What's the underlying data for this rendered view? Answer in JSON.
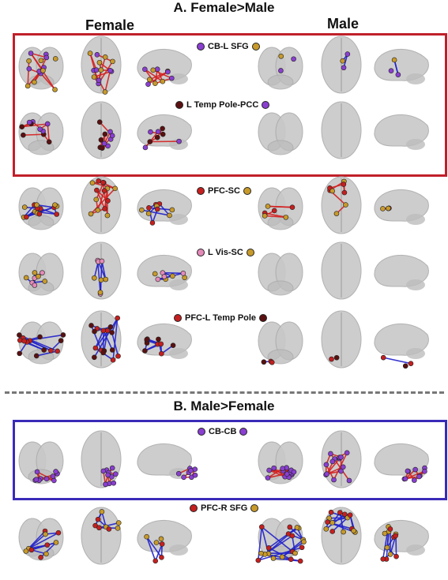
{
  "colors": {
    "female_gt_male_box": "#c0202a",
    "male_gt_female_box": "#3a2bb8",
    "divider": "#777777",
    "brain_fill": "#c8c8c8",
    "edge_red": "#d52020",
    "edge_blue": "#2020cc",
    "node_purple": "#8a3fd1",
    "node_gold": "#c89a2a",
    "node_darkred": "#5a1010",
    "node_red": "#c51f1f",
    "node_pink": "#e48ab8"
  },
  "section_a": {
    "title": "A. Female>Male",
    "col_female": "Female",
    "col_male": "Male"
  },
  "section_b": {
    "title": "B. Male>Female"
  },
  "rows": [
    {
      "label": "CB-L SFG",
      "dot_left": "#8a3fd1",
      "dot_right": "#c89a2a"
    },
    {
      "label": "L Temp Pole-PCC",
      "dot_left": "#5a1010",
      "dot_right": "#8a3fd1"
    },
    {
      "label": "PFC-SC",
      "dot_left": "#c51f1f",
      "dot_right": "#c89a2a"
    },
    {
      "label": "L Vis-SC",
      "dot_left": "#e48ab8",
      "dot_right": "#c89a2a"
    },
    {
      "label": "PFC-L Temp Pole",
      "dot_left": "#c51f1f",
      "dot_right": "#5a1010"
    },
    {
      "label": "CB-CB",
      "dot_left": "#8a3fd1",
      "dot_right": "#8a3fd1"
    },
    {
      "label": "PFC-R SFG",
      "dot_left": "#c51f1f",
      "dot_right": "#c89a2a"
    }
  ]
}
